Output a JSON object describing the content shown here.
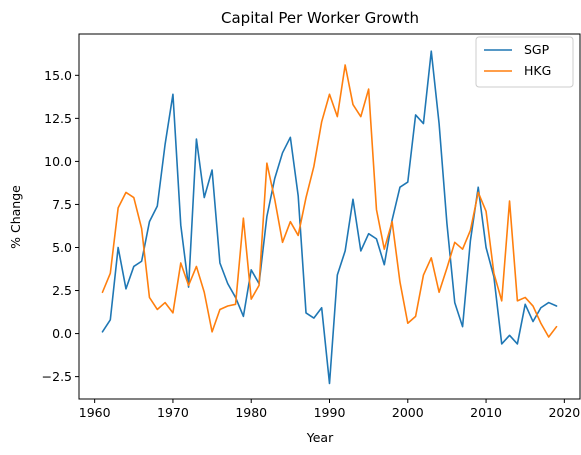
{
  "chart_data": {
    "type": "line",
    "title": "Capital Per Worker Growth",
    "xlabel": "Year",
    "ylabel": "% Change",
    "xlim": [
      1958,
      2022
    ],
    "ylim": [
      -3.8,
      17.4
    ],
    "xticks": [
      1960,
      1970,
      1980,
      1990,
      2000,
      2010,
      2020
    ],
    "yticks": [
      -2.5,
      0.0,
      2.5,
      5.0,
      7.5,
      10.0,
      12.5,
      15.0
    ],
    "ytick_labels": [
      "−2.5",
      "0.0",
      "2.5",
      "5.0",
      "7.5",
      "10.0",
      "12.5",
      "15.0"
    ],
    "grid": false,
    "legend_position": "top-right",
    "x": [
      1961,
      1962,
      1963,
      1964,
      1965,
      1966,
      1967,
      1968,
      1969,
      1970,
      1971,
      1972,
      1973,
      1974,
      1975,
      1976,
      1977,
      1978,
      1979,
      1980,
      1981,
      1982,
      1983,
      1984,
      1985,
      1986,
      1987,
      1988,
      1989,
      1990,
      1991,
      1992,
      1993,
      1994,
      1995,
      1996,
      1997,
      1998,
      1999,
      2000,
      2001,
      2002,
      2003,
      2004,
      2005,
      2006,
      2007,
      2008,
      2009,
      2010,
      2011,
      2012,
      2013,
      2014,
      2015,
      2016,
      2017,
      2018,
      2019
    ],
    "series": [
      {
        "name": "SGP",
        "color": "#1f77b4",
        "values": [
          0.1,
          0.8,
          5.0,
          2.6,
          3.9,
          4.2,
          6.5,
          7.4,
          11.0,
          13.9,
          6.3,
          2.7,
          11.3,
          7.9,
          9.5,
          4.1,
          2.9,
          2.1,
          1.0,
          3.7,
          2.9,
          6.8,
          9.0,
          10.5,
          11.4,
          8.0,
          1.2,
          0.9,
          1.5,
          -2.9,
          3.4,
          4.8,
          7.8,
          4.8,
          5.8,
          5.5,
          4.0,
          6.6,
          8.5,
          8.8,
          12.7,
          12.2,
          16.4,
          12.2,
          6.4,
          1.8,
          0.4,
          5.4,
          8.5,
          5.0,
          3.3,
          -0.6,
          -0.1,
          -0.6,
          1.7,
          0.7,
          1.5,
          1.8,
          1.6
        ]
      },
      {
        "name": "HKG",
        "color": "#ff7f0e",
        "values": [
          2.4,
          3.5,
          7.3,
          8.2,
          7.9,
          6.1,
          2.1,
          1.4,
          1.8,
          1.2,
          4.1,
          2.8,
          3.9,
          2.4,
          0.1,
          1.4,
          1.6,
          1.7,
          6.7,
          2.0,
          2.8,
          9.9,
          7.8,
          5.3,
          6.5,
          5.7,
          7.9,
          9.7,
          12.3,
          13.9,
          12.6,
          15.6,
          13.3,
          12.6,
          14.2,
          7.2,
          4.9,
          6.5,
          3.0,
          0.6,
          1.0,
          3.4,
          4.4,
          2.4,
          3.8,
          5.3,
          4.9,
          6.0,
          8.2,
          7.1,
          3.5,
          1.9,
          7.7,
          1.9,
          2.1,
          1.6,
          0.6,
          -0.2,
          0.4
        ]
      }
    ]
  }
}
